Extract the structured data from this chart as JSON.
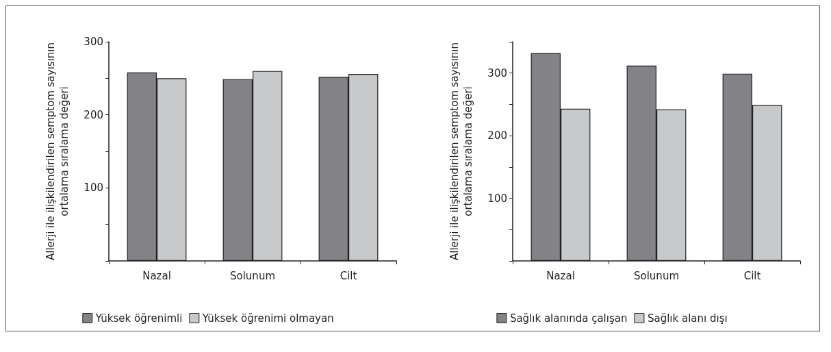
{
  "chart_data": [
    {
      "type": "bar",
      "ylabel": "Allerji ile ilişkilendirilen semptom sayısının\nortalama sıralama değeri",
      "categories": [
        "Nazal",
        "Solunum",
        "Cilt"
      ],
      "series": [
        {
          "name": "Yüksek öğrenimli",
          "color": "#838387",
          "values": [
            258,
            249,
            252
          ]
        },
        {
          "name": "Yüksek öğrenimi olmayan",
          "color": "#c8c9cb",
          "values": [
            250,
            260,
            256
          ]
        }
      ],
      "ylim": [
        0,
        300
      ],
      "yticks": [
        {
          "value": 0,
          "label": null
        },
        {
          "value": 50,
          "label": null
        },
        100,
        {
          "value": 150,
          "label": null
        },
        200,
        {
          "value": 250,
          "label": null
        },
        300
      ],
      "grid": false,
      "legend": "bottom"
    },
    {
      "type": "bar",
      "ylabel": "Allerji ile ilişkilendirilen semptom sayısının\nortalama sıralama değeri",
      "categories": [
        "Nazal",
        "Solunum",
        "Cilt"
      ],
      "series": [
        {
          "name": "Sağlık alanında çalışan",
          "color": "#838387",
          "values": [
            332,
            312,
            299
          ]
        },
        {
          "name": "Sağlık alanı dışı",
          "color": "#c8c9cb",
          "values": [
            243,
            242,
            249
          ]
        }
      ],
      "ylim": [
        0,
        350
      ],
      "yticks": [
        {
          "value": 0,
          "label": null
        },
        {
          "value": 50,
          "label": null
        },
        100,
        {
          "value": 150,
          "label": null
        },
        200,
        {
          "value": 250,
          "label": null
        },
        300,
        {
          "value": 350,
          "label": null
        }
      ],
      "grid": false,
      "legend": "bottom"
    }
  ]
}
